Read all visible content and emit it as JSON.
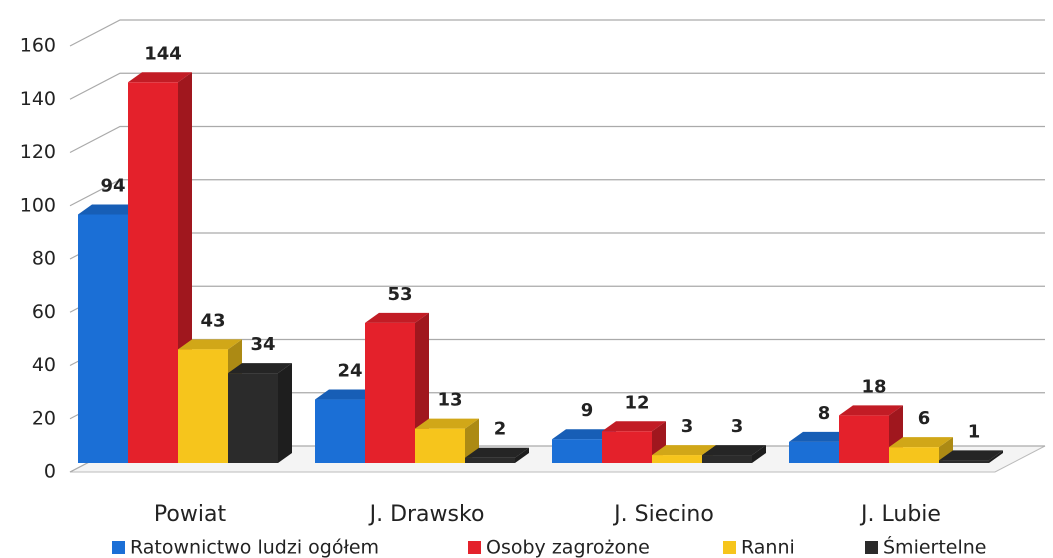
{
  "chart_data": {
    "type": "bar3d",
    "categories": [
      "Powiat",
      "J. Drawsko",
      "J. Siecino",
      "J. Lubie"
    ],
    "series": [
      {
        "name": "Ratownictwo ludzi ogółem",
        "color": "#1b6fd6",
        "values": [
          94,
          24,
          9,
          8
        ]
      },
      {
        "name": "Osoby zagrożone",
        "color": "#e4212b",
        "values": [
          144,
          53,
          12,
          18
        ]
      },
      {
        "name": "Ranni",
        "color": "#f6c51c",
        "values": [
          43,
          13,
          3,
          6
        ]
      },
      {
        "name": "Śmiertelne",
        "color": "#2b2b2b",
        "values": [
          34,
          2,
          3,
          1
        ]
      }
    ],
    "ylim": [
      0,
      160
    ],
    "yticks": [
      0,
      20,
      40,
      60,
      80,
      100,
      120,
      140,
      160
    ],
    "grid": true,
    "legend": "bottom"
  }
}
